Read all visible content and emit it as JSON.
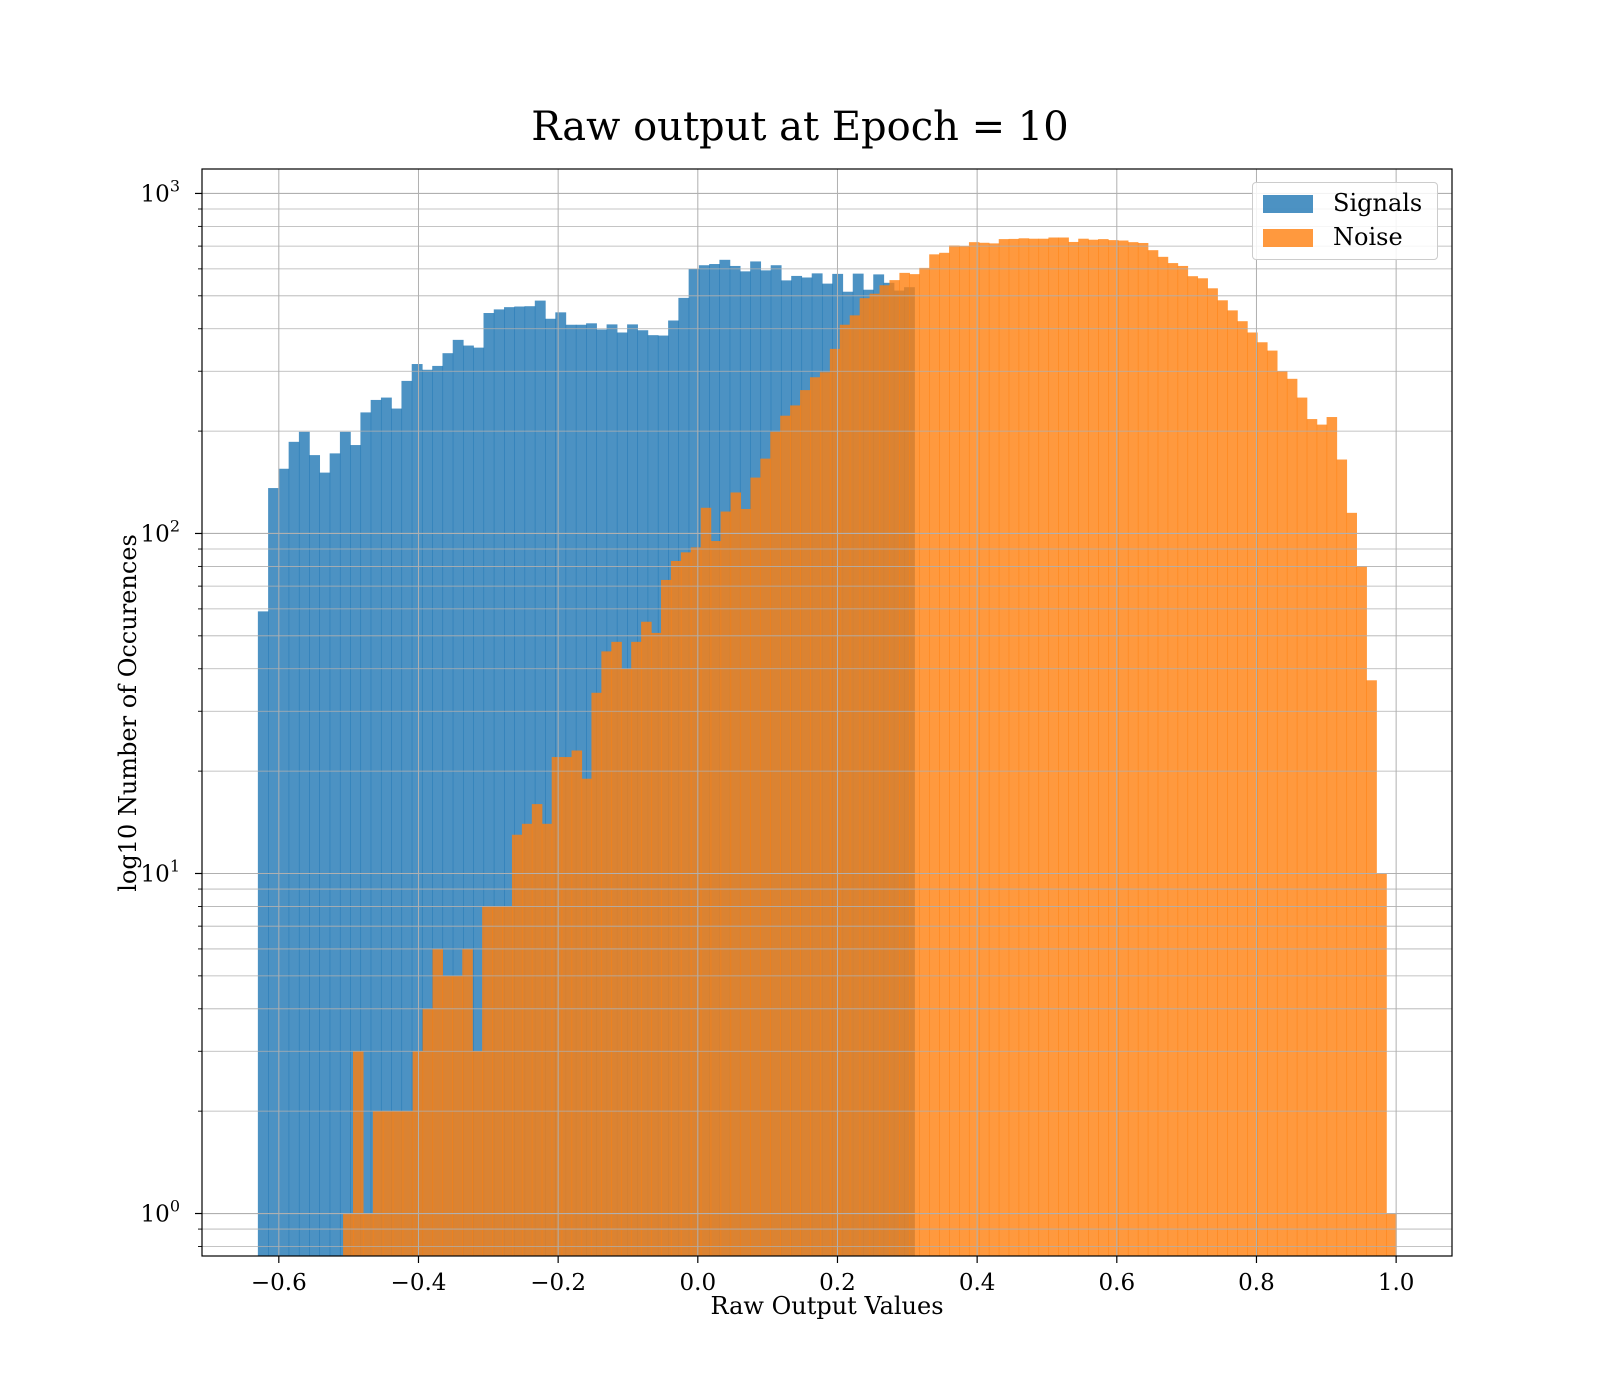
{
  "chart_data": {
    "type": "histogram",
    "title": "Raw output at Epoch = 10",
    "xlabel": "Raw Output Values",
    "ylabel": "log10 Number of Occurences",
    "xlim": [
      -0.71,
      1.08
    ],
    "ylim": [
      0.75,
      1180
    ],
    "yscale": "log",
    "grid": true,
    "legend_position": "top-right",
    "xticks": [
      "−0.6",
      "−0.4",
      "−0.2",
      "0.0",
      "0.2",
      "0.4",
      "0.6",
      "0.8",
      "1.0"
    ],
    "xtick_values": [
      -0.6,
      -0.4,
      -0.2,
      0.0,
      0.2,
      0.4,
      0.6,
      0.8,
      1.0
    ],
    "yticks": [
      {
        "base": "10",
        "exp": "0",
        "value": 1
      },
      {
        "base": "10",
        "exp": "1",
        "value": 10
      },
      {
        "base": "10",
        "exp": "2",
        "value": 100
      },
      {
        "base": "10",
        "exp": "3",
        "value": 1000
      }
    ],
    "series": [
      {
        "name": "Signals",
        "color": "#1f77b4",
        "alpha": 0.8,
        "x_start": -0.63,
        "x_end": 0.31,
        "counts": [
          59,
          136,
          155,
          186,
          199,
          170,
          151,
          172,
          199,
          182,
          227,
          247,
          251,
          233,
          281,
          315,
          303,
          311,
          339,
          371,
          357,
          352,
          445,
          456,
          463,
          465,
          466,
          484,
          428,
          447,
          411,
          411,
          415,
          398,
          412,
          390,
          412,
          396,
          383,
          382,
          423,
          493,
          600,
          615,
          620,
          638,
          612,
          590,
          631,
          594,
          615,
          555,
          572,
          566,
          582,
          543,
          580,
          514,
          581,
          521,
          578,
          546,
          518,
          530
        ]
      },
      {
        "name": "Noise",
        "color": "#ff7f0e",
        "alpha": 0.8,
        "x_start": -0.508,
        "x_end": 1.0,
        "counts": [
          1,
          3,
          1,
          2,
          2,
          2,
          2,
          3,
          4,
          6,
          5,
          5,
          6,
          3,
          8,
          8,
          8,
          13,
          14,
          16,
          14,
          22,
          22,
          23,
          19,
          34,
          45,
          48,
          40,
          48,
          55,
          51,
          73,
          83,
          88,
          91,
          119,
          95,
          116,
          132,
          118,
          146,
          166,
          199,
          222,
          238,
          264,
          288,
          298,
          349,
          411,
          438,
          492,
          507,
          537,
          556,
          584,
          579,
          604,
          662,
          669,
          703,
          701,
          719,
          716,
          713,
          734,
          735,
          738,
          736,
          736,
          742,
          742,
          720,
          736,
          731,
          734,
          729,
          727,
          719,
          715,
          681,
          651,
          624,
          612,
          571,
          563,
          526,
          485,
          453,
          421,
          390,
          365,
          345,
          300,
          285,
          251,
          217,
          209,
          220,
          165,
          115,
          80,
          37,
          10,
          1
        ]
      }
    ]
  }
}
